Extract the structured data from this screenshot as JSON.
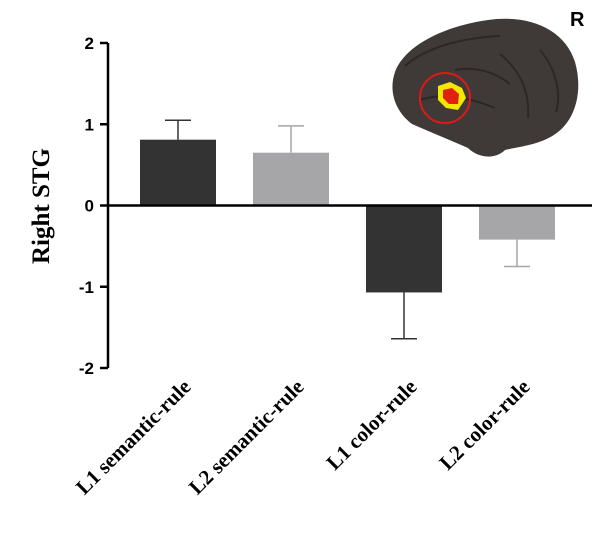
{
  "chart_data": {
    "type": "bar",
    "categories": [
      "L1 semantic-rule",
      "L2 semantic-rule",
      "L1 color-rule",
      "L2 color-rule"
    ],
    "values": [
      0.81,
      0.65,
      -1.07,
      -0.42
    ],
    "error": [
      0.24,
      0.33,
      0.57,
      0.33
    ],
    "colors": [
      "#333333",
      "#a6a6a8",
      "#333333",
      "#a6a6a8"
    ],
    "ylabel": "Right STG",
    "ylim": [
      -2,
      2
    ],
    "yticks": [
      -2,
      -1,
      0,
      1,
      2
    ],
    "corner_label": "R"
  }
}
